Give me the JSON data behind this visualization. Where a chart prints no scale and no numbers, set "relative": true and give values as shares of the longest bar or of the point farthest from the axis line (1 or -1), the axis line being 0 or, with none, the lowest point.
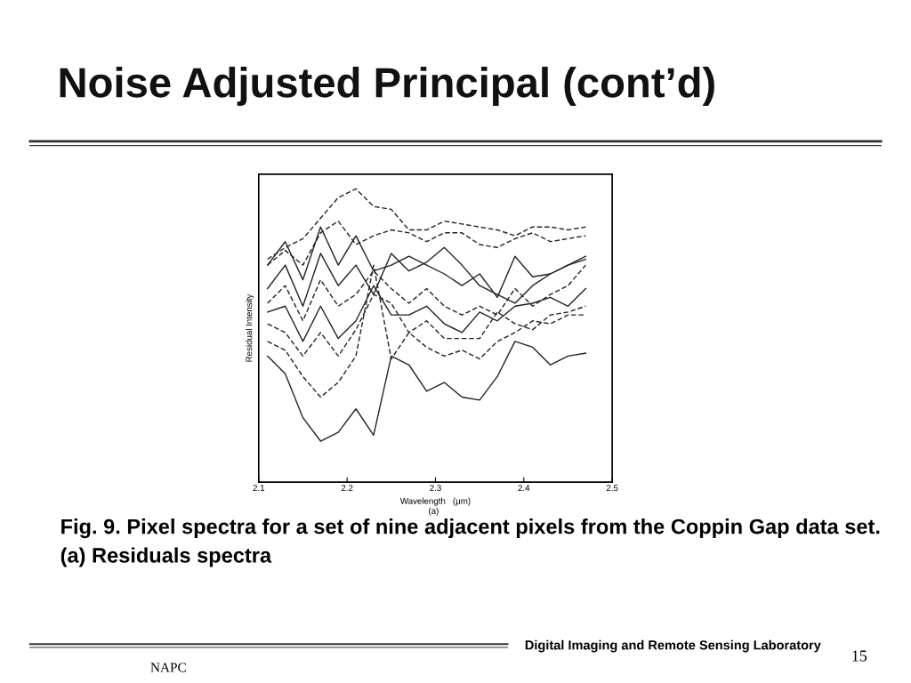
{
  "chart_data": {
    "type": "line",
    "title": "Noise Adjusted Principal (cont’d)",
    "xlabel": "Wavelength   (μm)",
    "ylabel": "Residual Intensity",
    "relative": true,
    "x": [
      2.11,
      2.13,
      2.15,
      2.17,
      2.19,
      2.21,
      2.23,
      2.25,
      2.27,
      2.29,
      2.31,
      2.33,
      2.35,
      2.37,
      2.39,
      2.41,
      2.43,
      2.45,
      2.47
    ],
    "xlim": [
      2.1,
      2.5
    ],
    "xticks": [
      2.1,
      2.2,
      2.3,
      2.4,
      2.5
    ],
    "grid": false,
    "marker": "none",
    "series": [
      {
        "color": "#222222",
        "line_style": "dashed",
        "values": [
          0.76,
          0.8,
          0.83,
          0.9,
          0.97,
          1.0,
          0.94,
          0.93,
          0.86,
          0.86,
          0.89,
          0.88,
          0.87,
          0.86,
          0.84,
          0.87,
          0.87,
          0.86,
          0.87
        ]
      },
      {
        "color": "#222222",
        "line_style": "dashed",
        "values": [
          0.74,
          0.79,
          0.74,
          0.85,
          0.89,
          0.81,
          0.84,
          0.86,
          0.85,
          0.82,
          0.85,
          0.85,
          0.81,
          0.8,
          0.83,
          0.85,
          0.82,
          0.83,
          0.84
        ]
      },
      {
        "color": "#222222",
        "line_style": "solid",
        "values": [
          0.74,
          0.82,
          0.69,
          0.87,
          0.74,
          0.84,
          0.72,
          0.74,
          0.77,
          0.74,
          0.71,
          0.67,
          0.71,
          0.63,
          0.77,
          0.7,
          0.71,
          0.74,
          0.77
        ]
      },
      {
        "color": "#222222",
        "line_style": "solid",
        "values": [
          0.66,
          0.74,
          0.6,
          0.78,
          0.67,
          0.74,
          0.64,
          0.78,
          0.72,
          0.75,
          0.8,
          0.74,
          0.67,
          0.64,
          0.61,
          0.67,
          0.71,
          0.74,
          0.76
        ]
      },
      {
        "color": "#222222",
        "line_style": "dashed",
        "values": [
          0.61,
          0.67,
          0.55,
          0.69,
          0.6,
          0.64,
          0.72,
          0.66,
          0.61,
          0.66,
          0.6,
          0.57,
          0.6,
          0.57,
          0.66,
          0.6,
          0.64,
          0.67,
          0.74
        ]
      },
      {
        "color": "#222222",
        "line_style": "solid",
        "values": [
          0.58,
          0.6,
          0.48,
          0.6,
          0.49,
          0.55,
          0.67,
          0.57,
          0.57,
          0.6,
          0.54,
          0.51,
          0.58,
          0.55,
          0.6,
          0.61,
          0.63,
          0.6,
          0.66
        ]
      },
      {
        "color": "#222222",
        "line_style": "dashed",
        "values": [
          0.54,
          0.51,
          0.43,
          0.51,
          0.43,
          0.52,
          0.64,
          0.61,
          0.51,
          0.55,
          0.49,
          0.49,
          0.49,
          0.58,
          0.54,
          0.52,
          0.57,
          0.58,
          0.6
        ]
      },
      {
        "color": "#222222",
        "line_style": "dashed",
        "values": [
          0.48,
          0.45,
          0.36,
          0.29,
          0.34,
          0.43,
          0.74,
          0.42,
          0.51,
          0.46,
          0.43,
          0.45,
          0.42,
          0.48,
          0.51,
          0.55,
          0.54,
          0.57,
          0.57
        ]
      },
      {
        "color": "#222222",
        "line_style": "solid",
        "values": [
          0.43,
          0.37,
          0.22,
          0.14,
          0.17,
          0.25,
          0.16,
          0.43,
          0.4,
          0.31,
          0.34,
          0.29,
          0.28,
          0.36,
          0.48,
          0.46,
          0.4,
          0.43,
          0.44
        ]
      }
    ],
    "annotations": [
      "(a)",
      "Fig. 9. Pixel spectra for a set of nine adjacent pixels from the Coppin Gap data set. (a) Residuals spectra",
      "Digital Imaging and Remote Sensing Laboratory",
      "NAPC",
      "15"
    ]
  }
}
